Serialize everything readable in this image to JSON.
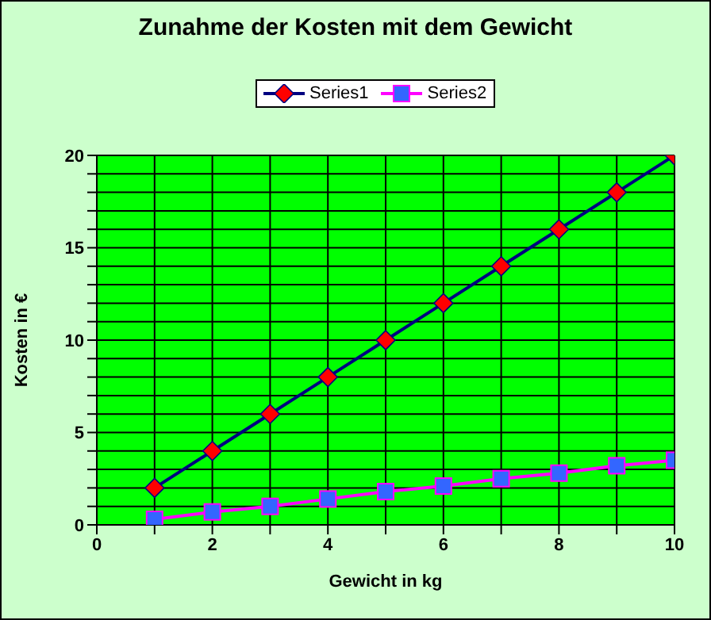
{
  "chart_data": {
    "type": "line",
    "title": "Zunahme der Kosten mit dem Gewicht",
    "xlabel": "Gewicht in kg",
    "ylabel": "Kosten in €",
    "x": [
      1,
      2,
      3,
      4,
      5,
      6,
      7,
      8,
      9,
      10
    ],
    "series": [
      {
        "name": "Series1",
        "color": "#000080",
        "colors": [
          "#ff0000",
          "#ff0000",
          "#ff0000",
          "#ff0000",
          "#ff0000",
          "#ff0000",
          "#ff0000",
          "#ff0000",
          "#ff0000",
          "#ff0000"
        ],
        "marker": "diamond",
        "values": [
          2,
          4,
          6,
          8,
          10,
          12,
          14,
          16,
          18,
          20
        ]
      },
      {
        "name": "Series2",
        "color": "#ff00ff",
        "colors": [
          "#3366ff",
          "#3366ff",
          "#3366ff",
          "#3366ff",
          "#3366ff",
          "#3366ff",
          "#3366ff",
          "#3366ff",
          "#3366ff",
          "#3366ff"
        ],
        "marker": "square",
        "values": [
          0.3,
          0.7,
          1.0,
          1.4,
          1.8,
          2.1,
          2.5,
          2.8,
          3.2,
          3.5
        ]
      }
    ],
    "xlim": [
      0,
      10
    ],
    "xticks": [
      0,
      {
        "value": 1,
        "label": null
      },
      2,
      {
        "value": 3,
        "label": null
      },
      4,
      {
        "value": 5,
        "label": null
      },
      6,
      {
        "value": 7,
        "label": null
      },
      8,
      {
        "value": 9,
        "label": null
      },
      10
    ],
    "ylim": [
      0,
      20
    ],
    "yticks": [
      0,
      {
        "value": 1,
        "label": null
      },
      {
        "value": 2,
        "label": null
      },
      {
        "value": 3,
        "label": null
      },
      {
        "value": 4,
        "label": null
      },
      5,
      {
        "value": 6,
        "label": null
      },
      {
        "value": 7,
        "label": null
      },
      {
        "value": 8,
        "label": null
      },
      {
        "value": 9,
        "label": null
      },
      10,
      {
        "value": 11,
        "label": null
      },
      {
        "value": 12,
        "label": null
      },
      {
        "value": 13,
        "label": null
      },
      {
        "value": 14,
        "label": null
      },
      15,
      {
        "value": 16,
        "label": null
      },
      {
        "value": 17,
        "label": null
      },
      {
        "value": 18,
        "label": null
      },
      {
        "value": 19,
        "label": null
      },
      20
    ],
    "grid": true,
    "legend": "top",
    "line_style": "solid"
  }
}
